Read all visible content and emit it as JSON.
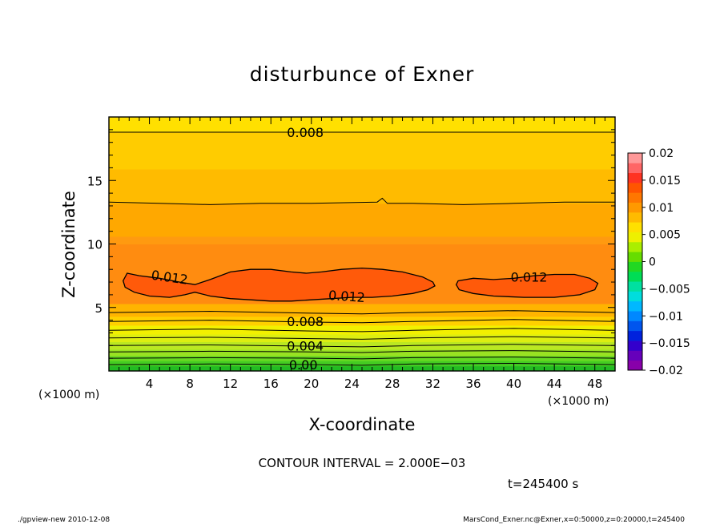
{
  "chart_data": {
    "type": "contour",
    "title": "disturbunce of Exner",
    "xlabel": "X-coordinate",
    "ylabel": "Z-coordinate",
    "x_unit_left": "(×1000 m)",
    "x_unit_right": "(×1000 m)",
    "xlim": [
      0,
      50
    ],
    "ylim": [
      0,
      20
    ],
    "x_ticks": [
      {
        "v": 4,
        "label": "4"
      },
      {
        "v": 8,
        "label": "8"
      },
      {
        "v": 12,
        "label": "12"
      },
      {
        "v": 16,
        "label": "16"
      },
      {
        "v": 20,
        "label": "20"
      },
      {
        "v": 24,
        "label": "24"
      },
      {
        "v": 28,
        "label": "28"
      },
      {
        "v": 32,
        "label": "32"
      },
      {
        "v": 36,
        "label": "36"
      },
      {
        "v": 40,
        "label": "40"
      },
      {
        "v": 44,
        "label": "44"
      },
      {
        "v": 48,
        "label": "48"
      }
    ],
    "y_ticks": [
      {
        "v": 5,
        "label": "5"
      },
      {
        "v": 10,
        "label": "10"
      },
      {
        "v": 15,
        "label": "15"
      }
    ],
    "bands": [
      {
        "z0": 0.0,
        "z1": 0.4,
        "color": "#22bb22"
      },
      {
        "z0": 0.4,
        "z1": 0.8,
        "color": "#44cc22"
      },
      {
        "z0": 0.8,
        "z1": 1.2,
        "color": "#66d822"
      },
      {
        "z0": 1.2,
        "z1": 1.7,
        "color": "#99e222"
      },
      {
        "z0": 1.7,
        "z1": 2.3,
        "color": "#bbe822"
      },
      {
        "z0": 2.3,
        "z1": 2.9,
        "color": "#ddee11"
      },
      {
        "z0": 2.9,
        "z1": 3.6,
        "color": "#f2f000"
      },
      {
        "z0": 3.6,
        "z1": 4.3,
        "color": "#ffd000"
      },
      {
        "z0": 4.3,
        "z1": 5.3,
        "color": "#ffb400"
      },
      {
        "z0": 5.3,
        "z1": 10.0,
        "color": "#ff8c10"
      },
      {
        "z0": 10.0,
        "z1": 10.6,
        "color": "#ff9a10"
      },
      {
        "z0": 10.6,
        "z1": 13.2,
        "color": "#ffa800"
      },
      {
        "z0": 13.2,
        "z1": 15.9,
        "color": "#ffbb00"
      },
      {
        "z0": 15.9,
        "z1": 18.8,
        "color": "#ffcc00"
      },
      {
        "z0": 18.8,
        "z1": 20.0,
        "color": "#ffe000"
      }
    ],
    "blobs": [
      {
        "color": "#ff5a0a",
        "points": [
          [
            1.8,
            7.7
          ],
          [
            3,
            7.5
          ],
          [
            5,
            7.3
          ],
          [
            7,
            7.0
          ],
          [
            8.5,
            6.8
          ],
          [
            10,
            7.2
          ],
          [
            12,
            7.8
          ],
          [
            14,
            8.0
          ],
          [
            16,
            8.0
          ],
          [
            18,
            7.8
          ],
          [
            19.5,
            7.7
          ],
          [
            21,
            7.8
          ],
          [
            23,
            8.0
          ],
          [
            25,
            8.1
          ],
          [
            27,
            8.0
          ],
          [
            29,
            7.8
          ],
          [
            31,
            7.4
          ],
          [
            32,
            7.0
          ],
          [
            32.2,
            6.7
          ],
          [
            31.5,
            6.4
          ],
          [
            30,
            6.1
          ],
          [
            28,
            5.9
          ],
          [
            26,
            5.8
          ],
          [
            24,
            5.8
          ],
          [
            22,
            5.7
          ],
          [
            20,
            5.6
          ],
          [
            18,
            5.5
          ],
          [
            16,
            5.5
          ],
          [
            14,
            5.6
          ],
          [
            12,
            5.7
          ],
          [
            10,
            5.9
          ],
          [
            8.5,
            6.2
          ],
          [
            7.5,
            6.0
          ],
          [
            6,
            5.8
          ],
          [
            4,
            5.9
          ],
          [
            2.5,
            6.2
          ],
          [
            1.6,
            6.6
          ],
          [
            1.4,
            7.1
          ]
        ]
      },
      {
        "color": "#ff5a0a",
        "points": [
          [
            34.5,
            7.1
          ],
          [
            36,
            7.3
          ],
          [
            38,
            7.2
          ],
          [
            40,
            7.3
          ],
          [
            42,
            7.5
          ],
          [
            44,
            7.6
          ],
          [
            46,
            7.6
          ],
          [
            47.5,
            7.3
          ],
          [
            48.3,
            6.9
          ],
          [
            48,
            6.4
          ],
          [
            46.5,
            6.0
          ],
          [
            44,
            5.8
          ],
          [
            41,
            5.8
          ],
          [
            38,
            5.9
          ],
          [
            36,
            6.1
          ],
          [
            34.6,
            6.4
          ],
          [
            34.3,
            6.8
          ]
        ]
      }
    ],
    "contour_lines": [
      {
        "points": [
          [
            0,
            0.5
          ],
          [
            10,
            0.55
          ],
          [
            20,
            0.5
          ],
          [
            25,
            0.45
          ],
          [
            30,
            0.55
          ],
          [
            40,
            0.6
          ],
          [
            50,
            0.5
          ]
        ]
      },
      {
        "points": [
          [
            0,
            1.0
          ],
          [
            10,
            1.05
          ],
          [
            20,
            1.0
          ],
          [
            25,
            0.95
          ],
          [
            30,
            1.05
          ],
          [
            40,
            1.1
          ],
          [
            50,
            1.0
          ]
        ]
      },
      {
        "points": [
          [
            0,
            1.5
          ],
          [
            10,
            1.55
          ],
          [
            20,
            1.5
          ],
          [
            25,
            1.45
          ],
          [
            30,
            1.55
          ],
          [
            40,
            1.6
          ],
          [
            50,
            1.5
          ]
        ]
      },
      {
        "points": [
          [
            0,
            2.0
          ],
          [
            10,
            2.05
          ],
          [
            20,
            1.95
          ],
          [
            25,
            1.9
          ],
          [
            30,
            2.0
          ],
          [
            40,
            2.1
          ],
          [
            50,
            2.0
          ]
        ]
      },
      {
        "points": [
          [
            0,
            2.6
          ],
          [
            10,
            2.65
          ],
          [
            20,
            2.55
          ],
          [
            25,
            2.5
          ],
          [
            30,
            2.6
          ],
          [
            40,
            2.7
          ],
          [
            50,
            2.6
          ]
        ]
      },
      {
        "points": [
          [
            0,
            3.2
          ],
          [
            10,
            3.3
          ],
          [
            20,
            3.15
          ],
          [
            25,
            3.1
          ],
          [
            30,
            3.2
          ],
          [
            40,
            3.35
          ],
          [
            50,
            3.2
          ]
        ]
      },
      {
        "points": [
          [
            0,
            3.9
          ],
          [
            10,
            4.0
          ],
          [
            20,
            3.85
          ],
          [
            25,
            3.8
          ],
          [
            30,
            3.9
          ],
          [
            40,
            4.05
          ],
          [
            50,
            3.9
          ]
        ]
      },
      {
        "points": [
          [
            0,
            4.6
          ],
          [
            10,
            4.7
          ],
          [
            20,
            4.55
          ],
          [
            25,
            4.5
          ],
          [
            30,
            4.6
          ],
          [
            40,
            4.75
          ],
          [
            50,
            4.6
          ]
        ]
      },
      {
        "points": [
          [
            0,
            13.3
          ],
          [
            5,
            13.2
          ],
          [
            10,
            13.1
          ],
          [
            15,
            13.2
          ],
          [
            20,
            13.2
          ],
          [
            26.5,
            13.3
          ],
          [
            27,
            13.6
          ],
          [
            27.5,
            13.2
          ],
          [
            30,
            13.2
          ],
          [
            35,
            13.1
          ],
          [
            40,
            13.2
          ],
          [
            45,
            13.3
          ],
          [
            50,
            13.3
          ]
        ]
      },
      {
        "points": [
          [
            0,
            18.8
          ],
          [
            10,
            18.8
          ],
          [
            20,
            18.8
          ],
          [
            30,
            18.8
          ],
          [
            40,
            18.8
          ],
          [
            50,
            18.8
          ]
        ]
      }
    ],
    "closed_contours": [
      {
        "points": [
          [
            1.8,
            7.7
          ],
          [
            3,
            7.5
          ],
          [
            5,
            7.3
          ],
          [
            7,
            7.0
          ],
          [
            8.5,
            6.8
          ],
          [
            10,
            7.2
          ],
          [
            12,
            7.8
          ],
          [
            14,
            8.0
          ],
          [
            16,
            8.0
          ],
          [
            18,
            7.8
          ],
          [
            19.5,
            7.7
          ],
          [
            21,
            7.8
          ],
          [
            23,
            8.0
          ],
          [
            25,
            8.1
          ],
          [
            27,
            8.0
          ],
          [
            29,
            7.8
          ],
          [
            31,
            7.4
          ],
          [
            32,
            7.0
          ],
          [
            32.2,
            6.7
          ],
          [
            31.5,
            6.4
          ],
          [
            30,
            6.1
          ],
          [
            28,
            5.9
          ],
          [
            26,
            5.8
          ],
          [
            24,
            5.8
          ],
          [
            22,
            5.7
          ],
          [
            20,
            5.6
          ],
          [
            18,
            5.5
          ],
          [
            16,
            5.5
          ],
          [
            14,
            5.6
          ],
          [
            12,
            5.7
          ],
          [
            10,
            5.9
          ],
          [
            8.5,
            6.2
          ],
          [
            7.5,
            6.0
          ],
          [
            6,
            5.8
          ],
          [
            4,
            5.9
          ],
          [
            2.5,
            6.2
          ],
          [
            1.6,
            6.6
          ],
          [
            1.4,
            7.1
          ]
        ]
      },
      {
        "points": [
          [
            34.5,
            7.1
          ],
          [
            36,
            7.3
          ],
          [
            38,
            7.2
          ],
          [
            40,
            7.3
          ],
          [
            42,
            7.5
          ],
          [
            44,
            7.6
          ],
          [
            46,
            7.6
          ],
          [
            47.5,
            7.3
          ],
          [
            48.3,
            6.9
          ],
          [
            48,
            6.4
          ],
          [
            46.5,
            6.0
          ],
          [
            44,
            5.8
          ],
          [
            41,
            5.8
          ],
          [
            38,
            5.9
          ],
          [
            36,
            6.1
          ],
          [
            34.6,
            6.4
          ],
          [
            34.3,
            6.8
          ]
        ]
      }
    ],
    "contour_labels": [
      {
        "text": "0.008",
        "x": 19.4,
        "y": 18.8,
        "rot": 0
      },
      {
        "text": "0.012",
        "x": 6.0,
        "y": 7.4,
        "rot": 8
      },
      {
        "text": "0.012",
        "x": 23.5,
        "y": 5.9,
        "rot": 4
      },
      {
        "text": "0.012",
        "x": 41.5,
        "y": 7.4,
        "rot": 0
      },
      {
        "text": "0.008",
        "x": 19.4,
        "y": 3.9,
        "rot": 0
      },
      {
        "text": "0.004",
        "x": 19.4,
        "y": 2.0,
        "rot": 0
      },
      {
        "text": "0.00",
        "x": 19.2,
        "y": 0.5,
        "rot": 0
      }
    ],
    "colorbar": {
      "min": -0.02,
      "max": 0.02,
      "labels": [
        {
          "v": 0.02,
          "label": "0.02"
        },
        {
          "v": 0.015,
          "label": "0.015"
        },
        {
          "v": 0.01,
          "label": "0.01"
        },
        {
          "v": 0.005,
          "label": "0.005"
        },
        {
          "v": 0,
          "label": "0"
        },
        {
          "v": -0.005,
          "label": "−0.005"
        },
        {
          "v": -0.01,
          "label": "−0.01"
        },
        {
          "v": -0.015,
          "label": "−0.015"
        },
        {
          "v": -0.02,
          "label": "−0.02"
        }
      ],
      "colors": [
        "#8800aa",
        "#6600bb",
        "#3300cc",
        "#0022dd",
        "#0055ee",
        "#0088ff",
        "#00b8ff",
        "#00dddd",
        "#00e0a0",
        "#00dd55",
        "#22d822",
        "#66dd00",
        "#aaee00",
        "#eef000",
        "#ffe000",
        "#ffbb00",
        "#ff9900",
        "#ff7700",
        "#ff5500",
        "#ff3322",
        "#ff6666",
        "#ff9999"
      ]
    },
    "contour_interval": "CONTOUR INTERVAL = 2.000E−03",
    "time": "t=245400 s",
    "footer_left": "./gpview-new   2010-12-08",
    "footer_right": "MarsCond_Exner.nc@Exner,x=0:50000,z=0:20000,t=245400"
  }
}
